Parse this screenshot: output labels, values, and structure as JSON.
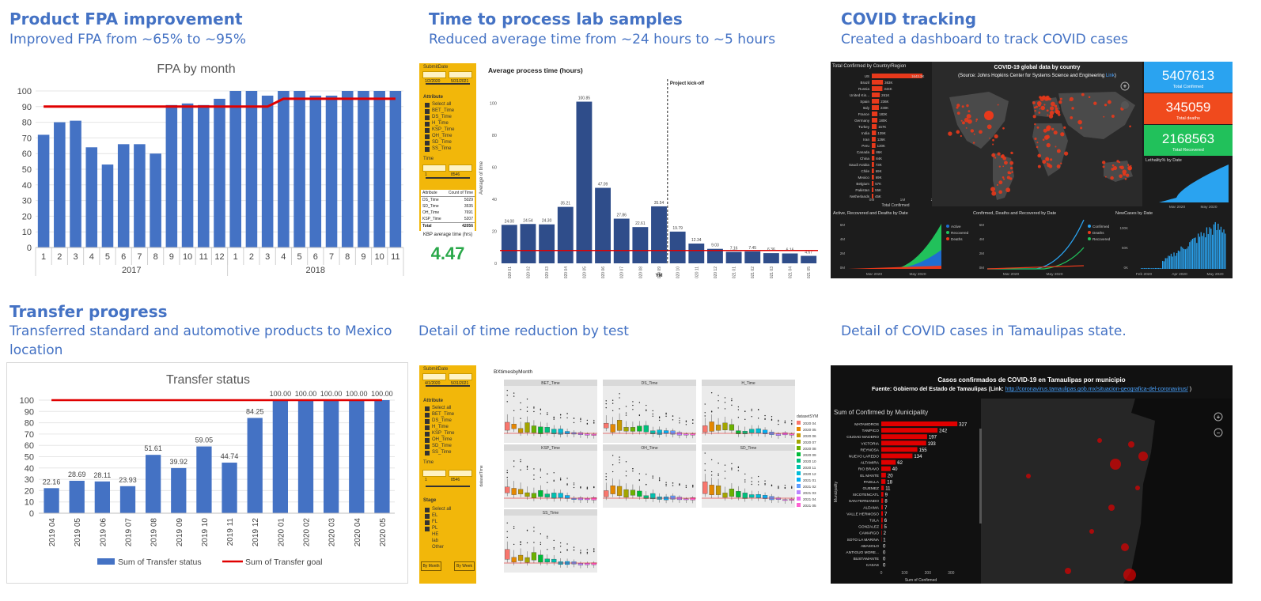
{
  "sections": {
    "fpa": {
      "title": "Product FPA improvement",
      "subtitle": "Improved FPA from ~65% to ~95%"
    },
    "lab": {
      "title": "Time to process lab samples",
      "subtitle": "Reduced average time from ~24 hours to ~5 hours"
    },
    "covid": {
      "title": "COVID tracking",
      "subtitle": "Created a dashboard to track COVID cases"
    },
    "transfer": {
      "title": "Transfer progress",
      "subtitle1": "Transferred  standard and automotive products to Mexico",
      "subtitle2": "location"
    },
    "detail_time": {
      "subtitle": "Detail of time reduction by test"
    },
    "detail_covid": {
      "subtitle": "Detail of COVID cases in Tamaulipas state."
    }
  },
  "chart_data": [
    {
      "type": "bar",
      "title": "FPA by month",
      "categories": [
        "1",
        "2",
        "3",
        "4",
        "5",
        "6",
        "7",
        "8",
        "9",
        "10",
        "11",
        "12",
        "1",
        "2",
        "3",
        "4",
        "5",
        "6",
        "7",
        "8",
        "9",
        "10",
        "11"
      ],
      "groups": [
        {
          "label": "2017",
          "count": 12
        },
        {
          "label": "2018",
          "count": 11
        }
      ],
      "series": [
        {
          "values": [
            72,
            80,
            81,
            64,
            53,
            66,
            66,
            60,
            91,
            92,
            91,
            95,
            100,
            100,
            97,
            100,
            100,
            97,
            97,
            100,
            100,
            100,
            100
          ]
        },
        {
          "type": "line",
          "values": [
            90,
            90,
            90,
            90,
            90,
            90,
            90,
            90,
            90,
            90,
            90,
            90,
            90,
            90,
            90,
            95,
            95,
            95,
            95,
            95,
            95,
            95,
            95
          ]
        }
      ],
      "ylim": [
        0,
        100
      ],
      "yticks": [
        "0",
        "10",
        "20",
        "30",
        "40",
        "50",
        "60",
        "70",
        "80",
        "90",
        "100"
      ],
      "colors": {
        "bar": "#4472c4",
        "line": "#e00000"
      }
    },
    {
      "type": "bar",
      "title": "Average process time (hours)",
      "ylabel": "Average of time",
      "xlabel": "YM",
      "annotation": "Project kick-off",
      "categories": [
        "2020 01",
        "2020 02",
        "2020 03",
        "2020 04",
        "2020 05",
        "2020 06",
        "2020 07",
        "2020 08",
        "2020 09",
        "2020 10",
        "2020 11",
        "2020 12",
        "2021 01",
        "2021 02",
        "2021 03",
        "2021 04",
        "2021 05"
      ],
      "values": [
        24.0,
        24.54,
        24.3,
        35.21,
        100.85,
        47.09,
        27.86,
        22.61,
        35.54,
        19.79,
        12.34,
        9.03,
        7.16,
        7.45,
        6.36,
        6.16,
        4.67
      ],
      "data_labels": [
        "24.00",
        "24.54",
        "24.30",
        "35.21",
        "100.85",
        "47.09",
        "27.86",
        "22.61",
        "35.54",
        "19.79",
        "12.34",
        "9.03",
        "7.16",
        "7.45",
        "6.36",
        "6.16",
        "4.67"
      ],
      "goal": 8,
      "ylim": [
        0,
        110
      ],
      "yticks": [
        "0",
        "20",
        "40",
        "60",
        "80",
        "100"
      ],
      "colors": {
        "bar": "#2f4d8a",
        "line": "#e00000"
      }
    },
    {
      "type": "bar",
      "title": "Transfer status",
      "categories": [
        "2019 04",
        "2019 05",
        "2019 06",
        "2019 07",
        "2019 08",
        "2019 09",
        "2019 10",
        "2019 11",
        "2019 12",
        "2020 01",
        "2020 02",
        "2020 03",
        "2020 04",
        "2020 05"
      ],
      "series": [
        {
          "name": "Sum of Transfer status",
          "values": [
            22.16,
            28.69,
            28.11,
            23.93,
            51.61,
            39.92,
            59.05,
            44.74,
            84.25,
            100,
            100,
            100,
            100,
            100
          ]
        },
        {
          "name": "Sum of Transfer goal",
          "type": "line",
          "values": [
            100,
            100,
            100,
            100,
            100,
            100,
            100,
            100,
            100,
            100,
            100,
            100,
            100,
            100
          ]
        }
      ],
      "data_labels": [
        "22.16",
        "28.69",
        "28.11",
        "23.93",
        "51.61",
        "39.92",
        "59.05",
        "44.74",
        "84.25",
        "100.00",
        "100.00",
        "100.00",
        "100.00",
        "100.00"
      ],
      "ylim": [
        0,
        100
      ],
      "yticks": [
        "0",
        "10",
        "20",
        "30",
        "40",
        "50",
        "60",
        "70",
        "80",
        "90",
        "100"
      ],
      "legend_placement": "bottom",
      "colors": {
        "bar": "#4472c4",
        "line": "#e00000"
      }
    },
    {
      "type": "bar",
      "title": "Sum of Confirmed by Municipality",
      "categories": [
        "MATAMOROS",
        "TAMPICO",
        "CIUDAD MADERO",
        "VICTORIA",
        "REYNOSA",
        "NUEVO LAREDO",
        "ALTAMIRA",
        "RIO BRAVO",
        "EL MANTE",
        "PADILLA",
        "GUEMEZ",
        "XICOTENCATL",
        "SAN FERNANDO",
        "ALDAMA",
        "VALLE HERMOSO",
        "TULA",
        "GONZALEZ",
        "CAMARGO",
        "SOTO LA MARINA",
        "ABASOLO",
        "ANTIGUO MORE...",
        "BUSTAMANTE",
        "CASAS"
      ],
      "values": [
        327,
        242,
        197,
        193,
        155,
        134,
        62,
        40,
        20,
        18,
        11,
        9,
        8,
        7,
        7,
        6,
        5,
        2,
        1,
        0,
        0,
        0,
        0
      ],
      "xlabel": "Sum of Confirmed",
      "ylabel": "Municipality",
      "xticks": [
        "0",
        "100",
        "200",
        "300"
      ],
      "colors": {
        "bar": "#e00000"
      }
    }
  ],
  "lab_panel": {
    "slicer_title": "SubmitDate",
    "date_from": "1/2/2020",
    "date_to": "5/31/2021",
    "attribute_label": "Attribute",
    "attributes": [
      "Select all",
      "BET_Time",
      "DS_Time",
      "H_Time",
      "KSP_Time",
      "OH_Time",
      "SD_Time",
      "SS_Time"
    ],
    "time_label": "Time",
    "time_from": "1",
    "time_to": "8546",
    "table_headers": [
      "Attribute",
      "Count of Time"
    ],
    "table_rows": [
      [
        "DS_Time",
        "5029"
      ],
      [
        "SD_Time",
        "3535"
      ],
      [
        "OH_Time",
        "7691"
      ],
      [
        "KSP_Time",
        "5207"
      ]
    ],
    "table_total": [
      "Total",
      "42056"
    ],
    "kbp_label": "KBP average time (hrs)",
    "kbp_value": "4.47"
  },
  "detail_panel": {
    "slicer_title": "SubmitDate",
    "date_from": "4/1/2020",
    "date_to": "5/31/2021",
    "attribute_label": "Attribute",
    "attributes": [
      "Select all",
      "BET_Time",
      "DS_Time",
      "H_Time",
      "KSP_Time",
      "OH_Time",
      "SD_Time",
      "SS_Time"
    ],
    "time_label": "Time",
    "time_from": "1",
    "time_to": "8546",
    "stage_label": "Stage",
    "stages": [
      "Select all",
      "EL",
      "FL",
      "PL",
      "HE",
      "lab",
      "Other"
    ],
    "btn_month": "By Month",
    "btn_week": "By Week",
    "chart_title": "BXtimesbyMonth",
    "ylabel": "datasetTime",
    "facets": [
      "BET_Time",
      "DS_Time",
      "H_Time",
      "KSP_Time",
      "OH_Time",
      "SD_Time",
      "SS_Time"
    ],
    "legend_title": "datasetSYM",
    "legend_items": [
      "2020 04",
      "2020 05",
      "2020 06",
      "2020 07",
      "2020 08",
      "2020 09",
      "2020 10",
      "2020 11",
      "2020 12",
      "2021 01",
      "2021 02",
      "2021 03",
      "2021 04",
      "2021 05"
    ],
    "legend_colors": [
      "#f8766d",
      "#e58700",
      "#c99800",
      "#a3a500",
      "#6bb100",
      "#00ba38",
      "#00bf7d",
      "#00c0af",
      "#00bcd8",
      "#00b0f6",
      "#619cff",
      "#b983ff",
      "#e76bf3",
      "#fd61d1"
    ]
  },
  "covid_panel": {
    "left_title": "Total Confirmed by Country/Region",
    "countries": [
      "US",
      "Brazil",
      "Russia",
      "United Kin...",
      "Spain",
      "Italy",
      "France",
      "Germany",
      "Turkey",
      "India",
      "Iran",
      "Peru",
      "Canada",
      "China",
      "Saudi Arabia",
      "Chile",
      "Mexico",
      "Belgium",
      "Pakistan",
      "Netherlands"
    ],
    "country_values": [
      1643.2,
      363,
      344,
      261,
      236,
      230,
      183,
      180,
      157,
      139,
      126,
      120,
      86,
      84,
      73,
      69,
      69,
      57,
      55,
      45
    ],
    "country_labels": [
      "1643.2K",
      "363K",
      "344K",
      "261K",
      "236K",
      "230K",
      "183K",
      "180K",
      "157K",
      "139K",
      "126K",
      "120K",
      "86K",
      "84K",
      "73K",
      "69K",
      "69K",
      "57K",
      "55K",
      "45K"
    ],
    "left_axis": [
      "0M",
      "1M",
      "2M"
    ],
    "left_axis_title": "Total Confirmed",
    "map_title": "COVID-19 global data by country",
    "map_source_prefix": "(Source: Johns Hopkins Center for Systems Science and Engineering ",
    "map_source_link": "Link",
    "map_source_suffix": ")",
    "kpi_confirmed": "5407613",
    "kpi_confirmed_label": "Total Confirmed",
    "kpi_deaths": "345059",
    "kpi_deaths_label": "Total deaths",
    "kpi_recovered": "2168563",
    "kpi_recovered_label": "Total Recovered",
    "lethality_title": "Lethality% by Date",
    "lethality_axis": [
      "Mar 2020",
      "May 2020"
    ],
    "area_title": "Active, Recovered and Deaths by Date",
    "area_axis": [
      "Mar 2020",
      "May 2020"
    ],
    "area_yaxis": [
      "0M",
      "2M",
      "4M",
      "6M"
    ],
    "area_legend": [
      "Active",
      "Recovered",
      "Deaths"
    ],
    "line_title": "Confirmed, Deaths and Recovered by Date",
    "line_axis": [
      "Mar 2020",
      "May 2020"
    ],
    "line_yaxis": [
      "0M",
      "2M",
      "4M",
      "6M"
    ],
    "line_legend": [
      "Confirmed",
      "Deaths",
      "Recovered"
    ],
    "new_title": "NewCases by Date",
    "new_axis": [
      "Feb 2020",
      "Apr 2020",
      "May 2020"
    ],
    "new_yaxis": [
      "0K",
      "50K",
      "100K"
    ],
    "colors": {
      "bar": "#e8391b",
      "confirmed": "#2aa3f0",
      "deaths": "#e8391b",
      "recovered": "#21c15b",
      "kpi_blue": "#2aa3f0",
      "kpi_red": "#f04a1d",
      "kpi_green": "#21c15b"
    }
  },
  "tam_panel": {
    "title": "Casos confirmados de COVID-19 en Tamaulipas por municipio",
    "source_prefix": "Fuente: Gobierno del Estado de Tamaulipas (Link: ",
    "source_link": "http://coronavirus.tamaulipas.gob.mx/situacion-geografica-del-coronavirus/",
    "source_suffix": " )"
  }
}
